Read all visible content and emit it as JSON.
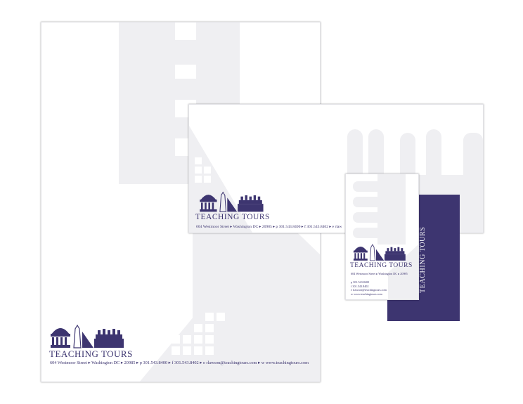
{
  "colors": {
    "brand": "#3d3570",
    "watermark": "#efeff2",
    "paper": "#ffffff"
  },
  "letterhead": {
    "brand": "TEACHING TOURS",
    "address_line": "604 Westmoor Street ▸ Washington DC ▸ 20985 ▸ p  301.543.8400 ▸ f  301.543.8402 ▸ e  rlawson@teachingtours.com ▸ w  www.teachingtours.com"
  },
  "envelope": {
    "brand": "TEACHING TOURS",
    "address_line": "604 Westmoor Street ▸ Washington DC ▸ 20985 ▸ p  301.543.8400 ▸ f  301.543.8402 ▸ e  rlaw"
  },
  "card_front": {
    "brand": "TEACHING TOURS",
    "address_line": "604 Westmoor Street ▸ Washington DC ▸ 20985",
    "contact": [
      "p   301.543.8400",
      "f   301.543.8402",
      "e   rlawson@teachingtours.com",
      "w   www.teachingtours.com"
    ]
  },
  "card_back": {
    "brand": "TEACHING TOURS"
  },
  "icons": {
    "logo": "building-skyline-logo",
    "watermark": "hand-skyline-watermark"
  }
}
